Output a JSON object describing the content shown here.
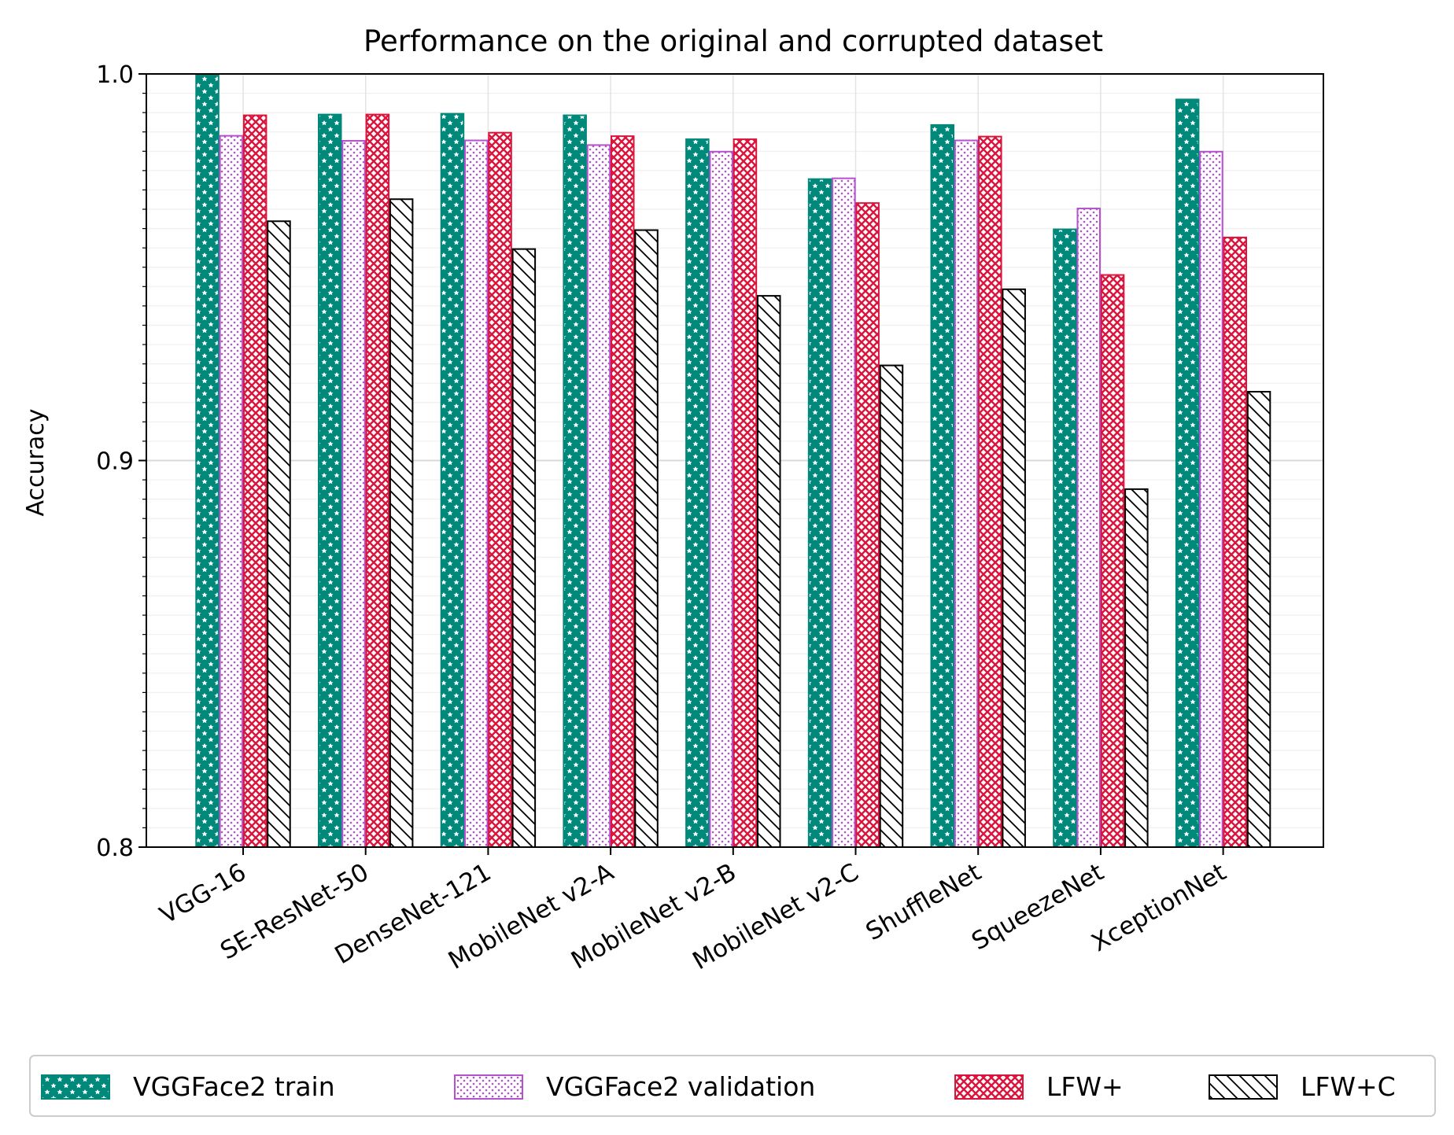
{
  "chart_data": {
    "type": "bar",
    "title": "Performance on the original and corrupted dataset",
    "xlabel": "",
    "ylabel": "Accuracy",
    "ylim": [
      0.8,
      1.0
    ],
    "yticks": [
      "0.8",
      "0.9",
      "1.0"
    ],
    "grid": true,
    "legend_position": "bottom",
    "categories": [
      "VGG-16",
      "SE-ResNet-50",
      "DenseNet-121",
      "MobileNet v2-A",
      "MobileNet v2-B",
      "MobileNet v2-C",
      "ShuffleNet",
      "SqueezeNet",
      "XceptionNet"
    ],
    "series": [
      {
        "name": "VGGFace2 train",
        "color": "#00897b",
        "values": [
          1.0,
          0.9895,
          0.9897,
          0.9893,
          0.9831,
          0.9728,
          0.9868,
          0.9598,
          0.9934
        ]
      },
      {
        "name": "VGGFace2 validation",
        "color": "#b452cd",
        "values": [
          0.984,
          0.9827,
          0.9828,
          0.9816,
          0.9799,
          0.973,
          0.9828,
          0.9652,
          0.9799
        ]
      },
      {
        "name": "LFW+",
        "color": "#dc143c",
        "values": [
          0.9893,
          0.9895,
          0.9848,
          0.9839,
          0.9831,
          0.9666,
          0.9838,
          0.948,
          0.9577
        ]
      },
      {
        "name": "LFW+C",
        "color": "#000000",
        "values": [
          0.9619,
          0.9676,
          0.9547,
          0.9596,
          0.9426,
          0.9246,
          0.9443,
          0.8926,
          0.9178
        ]
      }
    ]
  }
}
